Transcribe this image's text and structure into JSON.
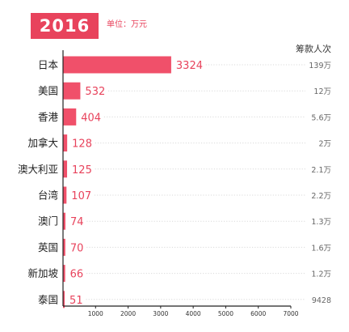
{
  "header": {
    "year": "2016年",
    "unit": "单位：万元"
  },
  "chart_data": {
    "type": "bar",
    "orientation": "horizontal",
    "categories": [
      "日本",
      "美国",
      "香港",
      "加拿大",
      "澳大利亚",
      "台湾",
      "澳门",
      "英国",
      "新加坡",
      "泰国"
    ],
    "values": [
      3324,
      532,
      404,
      128,
      125,
      107,
      74,
      70,
      66,
      51
    ],
    "value_labels": [
      "3324",
      "532",
      "404",
      "128",
      "125",
      "107",
      "74",
      "70",
      "66",
      "51"
    ],
    "secondary_column_title": "筹款人次",
    "secondary_values": [
      "139万",
      "12万",
      "5.6万",
      "2万",
      "2.1万",
      "2.2万",
      "1.3万",
      "1.6万",
      "1.2万",
      "9428"
    ],
    "xlim": [
      0,
      7000
    ],
    "xticks": [
      1000,
      2000,
      3000,
      4000,
      5000,
      6000,
      7000
    ],
    "xtick_labels": [
      "1000",
      "2000",
      "3000",
      "4000",
      "5000",
      "6000",
      "7000"
    ],
    "grid": false,
    "colors": {
      "bar": "#f0506a",
      "accent": "#e8435c",
      "dots": "#d9d9d9",
      "axis": "#222222"
    }
  }
}
